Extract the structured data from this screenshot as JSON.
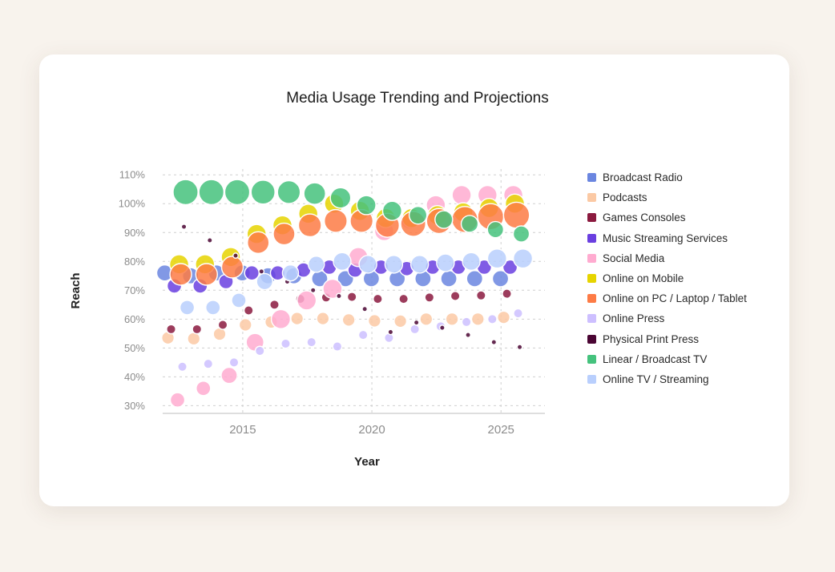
{
  "chart_data": {
    "type": "scatter",
    "title": "Media Usage Trending and Projections",
    "xlabel": "Year",
    "ylabel": "Reach",
    "xlim": [
      2011.9,
      2026.7
    ],
    "ylim": [
      29,
      112
    ],
    "x_ticks": [
      2015,
      2020,
      2025
    ],
    "y_ticks": [
      "30%",
      "40%",
      "50%",
      "60%",
      "70%",
      "80%",
      "90%",
      "100%",
      "110%"
    ],
    "y_tick_values": [
      30,
      40,
      50,
      60,
      70,
      80,
      90,
      100,
      110
    ],
    "grid": true,
    "legend_position": "right",
    "bubble_size_note": "bubble area scales with size value",
    "series": [
      {
        "name": "Broadcast Radio",
        "color": "#6b86e0",
        "x": [
          2012.6,
          2013.6,
          2014.6,
          2015.6,
          2016.6,
          2017.6,
          2018.6,
          2019.6,
          2020.6,
          2021.6,
          2022.6,
          2023.6,
          2024.6,
          2025.6
        ],
        "y": [
          76,
          75,
          76,
          76,
          75,
          75,
          74,
          74,
          74,
          74,
          74,
          74,
          74,
          74
        ],
        "size": [
          5,
          5,
          5,
          5,
          5,
          5,
          5,
          5,
          5,
          5,
          5,
          5,
          5,
          5
        ]
      },
      {
        "name": "Podcasts",
        "color": "#fbc9a4",
        "x": [
          2012.6,
          2013.6,
          2014.6,
          2015.6,
          2016.6,
          2017.6,
          2018.6,
          2019.6,
          2020.6,
          2021.6,
          2022.6,
          2023.6,
          2024.6,
          2025.6
        ],
        "y": [
          53.5,
          53.2,
          54.8,
          58,
          59,
          60.2,
          60.2,
          59.7,
          59.4,
          59.3,
          60,
          60,
          60,
          60.6
        ],
        "size": [
          3,
          3,
          3,
          3,
          3,
          3,
          3,
          3,
          3,
          3,
          3,
          3,
          3,
          3
        ]
      },
      {
        "name": "Games Consoles",
        "color": "#8b1a3f",
        "x": [
          2012.6,
          2013.6,
          2014.6,
          2015.6,
          2016.6,
          2017.6,
          2018.6,
          2019.6,
          2020.6,
          2021.6,
          2022.6,
          2023.6,
          2024.6,
          2025.6
        ],
        "y": [
          56.5,
          56.5,
          58,
          63,
          65,
          67,
          67.5,
          67.7,
          67,
          67,
          67.5,
          68,
          68.2,
          68.8
        ],
        "size": [
          1.6,
          1.6,
          1.6,
          1.6,
          1.6,
          1.6,
          1.6,
          1.6,
          1.6,
          1.6,
          1.6,
          1.6,
          1.6,
          1.6
        ]
      },
      {
        "name": "Music Streaming Services",
        "color": "#6a3fe0",
        "x": [
          2012.6,
          2013.6,
          2014.6,
          2015.6,
          2016.6,
          2017.6,
          2018.6,
          2019.6,
          2020.6,
          2021.6,
          2022.6,
          2023.6,
          2024.6,
          2025.6
        ],
        "y": [
          71.5,
          71.5,
          73,
          76,
          76,
          77,
          78,
          77,
          78,
          77.5,
          78,
          78,
          78,
          78
        ],
        "size": [
          4,
          4,
          4,
          4,
          4,
          4,
          4,
          4,
          4,
          4,
          4,
          4,
          4,
          4
        ]
      },
      {
        "name": "Social Media",
        "color": "#ffabd0",
        "x": [
          2012.6,
          2013.6,
          2014.6,
          2015.6,
          2016.6,
          2017.6,
          2018.6,
          2019.6,
          2020.6,
          2021.6,
          2022.6,
          2023.6,
          2024.6,
          2025.6
        ],
        "y": [
          32,
          36,
          40.5,
          52,
          60,
          66.5,
          70.5,
          81.5,
          90.5,
          94.5,
          99.5,
          103,
          103,
          103
        ],
        "size": [
          4,
          4,
          5,
          6,
          7,
          7,
          7,
          7,
          7,
          7,
          7,
          7,
          7,
          7
        ]
      },
      {
        "name": "Online on Mobile",
        "color": "#e6d400",
        "x": [
          2012.6,
          2013.6,
          2014.6,
          2015.6,
          2016.6,
          2017.6,
          2018.6,
          2019.6,
          2020.6,
          2021.6,
          2022.6,
          2023.6,
          2024.6,
          2025.6
        ],
        "y": [
          79,
          79,
          81.5,
          89.5,
          92.5,
          96.5,
          100,
          97.5,
          95,
          95,
          96,
          97,
          98.5,
          100
        ],
        "size": [
          7,
          7,
          7,
          7,
          7,
          7,
          7,
          7,
          7,
          7,
          7,
          7,
          7,
          7
        ]
      },
      {
        "name": "Online on PC / Laptop / Tablet",
        "color": "#fd7b45",
        "x": [
          2012.6,
          2013.6,
          2014.6,
          2015.6,
          2016.6,
          2017.6,
          2018.6,
          2019.6,
          2020.6,
          2021.6,
          2022.6,
          2023.6,
          2024.6,
          2025.6
        ],
        "y": [
          75.5,
          75.5,
          78,
          86.5,
          89.5,
          92.5,
          94,
          94,
          92.5,
          93,
          94,
          94.5,
          95.5,
          96
        ],
        "size": [
          9,
          9,
          9,
          9,
          9,
          10,
          10,
          10,
          11,
          12,
          12,
          13,
          13,
          13
        ]
      },
      {
        "name": "Online Press",
        "color": "#cdbfff",
        "x": [
          2012.6,
          2013.6,
          2014.6,
          2015.6,
          2016.6,
          2017.6,
          2018.6,
          2019.6,
          2020.6,
          2021.6,
          2022.6,
          2023.6,
          2024.6,
          2025.6
        ],
        "y": [
          43.5,
          44.5,
          45,
          49,
          51.5,
          52,
          50.5,
          54.5,
          53.5,
          56.5,
          57.5,
          59,
          60,
          62
        ],
        "size": [
          1.6,
          1.6,
          1.6,
          1.6,
          1.6,
          1.6,
          1.6,
          1.6,
          1.6,
          1.6,
          1.6,
          1.6,
          1.6,
          1.6
        ]
      },
      {
        "name": "Physical Print Press",
        "color": "#4a0533",
        "x": [
          2012.6,
          2013.6,
          2014.6,
          2015.6,
          2016.6,
          2017.6,
          2018.6,
          2019.6,
          2020.6,
          2021.6,
          2022.6,
          2023.6,
          2024.6,
          2025.6
        ],
        "y": [
          92,
          87.3,
          82,
          76.5,
          73,
          70,
          68,
          63.5,
          55.5,
          58.8,
          57,
          54.5,
          52,
          50.3
        ],
        "size": [
          0.5,
          0.5,
          0.5,
          0.5,
          0.5,
          0.5,
          0.5,
          0.5,
          0.5,
          0.5,
          0.5,
          0.5,
          0.5,
          0.5
        ]
      },
      {
        "name": "Linear / Broadcast TV",
        "color": "#45c27d",
        "x": [
          2012.6,
          2013.6,
          2014.6,
          2015.6,
          2016.6,
          2017.6,
          2018.6,
          2019.6,
          2020.6,
          2021.6,
          2022.6,
          2023.6,
          2024.6,
          2025.6
        ],
        "y": [
          104,
          104,
          104,
          104,
          104,
          103.5,
          102,
          99.5,
          97.5,
          96,
          94.5,
          93,
          91,
          89.5
        ],
        "size": [
          12,
          12,
          12,
          11,
          10,
          9,
          8,
          7,
          7,
          6,
          6,
          5.5,
          5,
          5
        ]
      },
      {
        "name": "Online TV / Streaming",
        "color": "#b9cffd",
        "x": [
          2012.6,
          2013.6,
          2014.6,
          2015.6,
          2016.6,
          2017.6,
          2018.6,
          2019.6,
          2020.6,
          2021.6,
          2022.6,
          2023.6,
          2024.6,
          2025.6
        ],
        "y": [
          64,
          64,
          66.5,
          73,
          76,
          79,
          80,
          79,
          79,
          79,
          79.5,
          80,
          81,
          81
        ],
        "size": [
          4,
          4,
          4,
          5,
          5,
          5,
          6,
          6,
          6,
          6,
          6,
          6,
          7,
          7
        ]
      }
    ]
  }
}
